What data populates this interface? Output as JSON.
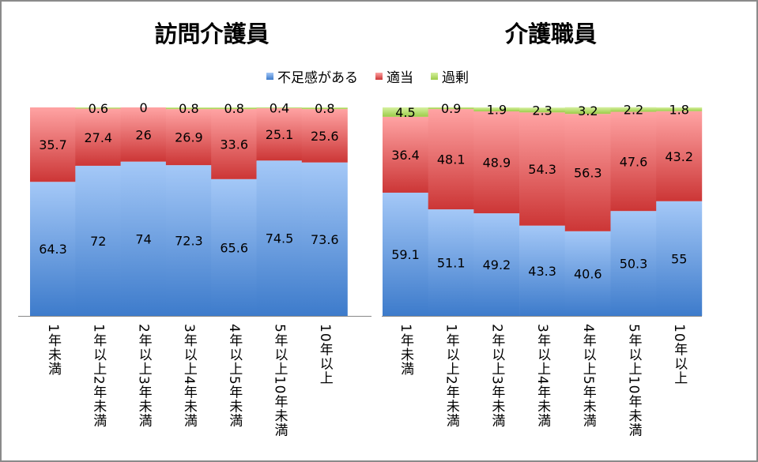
{
  "legend": [
    "不足感がある",
    "適当",
    "過剰"
  ],
  "colors": {
    "shortage": [
      "#a4c8f7",
      "#3d7bcb"
    ],
    "appropriate": [
      "#ffa3a3",
      "#cc3636"
    ],
    "excess": [
      "#d6f0a0",
      "#9ccc48"
    ]
  },
  "chart_data": [
    {
      "type": "bar",
      "stacked": true,
      "title": "訪問介護員",
      "categories": [
        "1年未満",
        "1年以上2年未満",
        "2年以上3年未満",
        "3年以上4年未満",
        "4年以上5年未満",
        "5年以上10年未満",
        "10年以上"
      ],
      "series": [
        {
          "name": "不足感がある",
          "values": [
            64.3,
            72,
            74,
            72.3,
            65.6,
            74.5,
            73.6
          ]
        },
        {
          "name": "適当",
          "values": [
            35.7,
            27.4,
            26,
            26.9,
            33.6,
            25.1,
            25.6
          ]
        },
        {
          "name": "過剰",
          "values": [
            null,
            0.6,
            0,
            0.8,
            0.8,
            0.4,
            0.8
          ]
        }
      ],
      "ylim": [
        0,
        100
      ],
      "grid": false,
      "legend_position": "top"
    },
    {
      "type": "bar",
      "stacked": true,
      "title": "介護職員",
      "categories": [
        "1年未満",
        "1年以上2年未満",
        "2年以上3年未満",
        "3年以上4年未満",
        "4年以上5年未満",
        "5年以上10年未満",
        "10年以上"
      ],
      "series": [
        {
          "name": "不足感がある",
          "values": [
            59.1,
            51.1,
            49.2,
            43.3,
            40.6,
            50.3,
            55
          ]
        },
        {
          "name": "適当",
          "values": [
            36.4,
            48.1,
            48.9,
            54.3,
            56.3,
            47.6,
            43.2
          ]
        },
        {
          "name": "過剰",
          "values": [
            4.5,
            0.9,
            1.9,
            2.3,
            3.2,
            2.2,
            1.8
          ]
        }
      ],
      "ylim": [
        0,
        100
      ],
      "grid": false,
      "legend_position": "top"
    }
  ]
}
